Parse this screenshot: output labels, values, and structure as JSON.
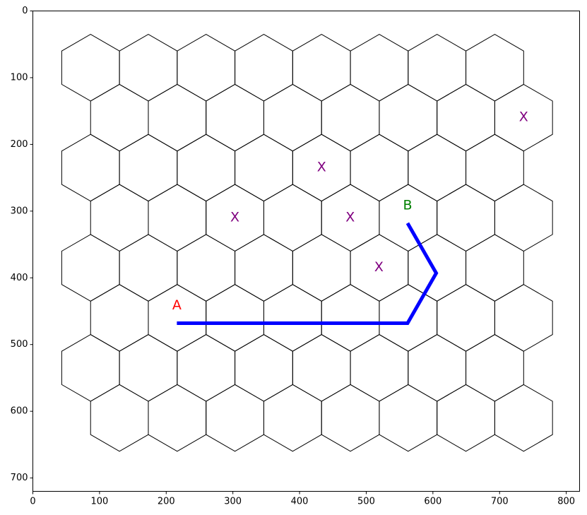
{
  "chart_data": {
    "type": "scatter",
    "title": "",
    "xlabel": "",
    "ylabel": "",
    "xlim": [
      0,
      820
    ],
    "ylim": [
      720,
      0
    ],
    "y_inverted": true,
    "grid": false,
    "x_ticks": [
      {
        "value": 0,
        "label": "0"
      },
      {
        "value": 100,
        "label": "100"
      },
      {
        "value": 200,
        "label": "200"
      },
      {
        "value": 300,
        "label": "300"
      },
      {
        "value": 400,
        "label": "400"
      },
      {
        "value": 500,
        "label": "500"
      },
      {
        "value": 600,
        "label": "600"
      },
      {
        "value": 700,
        "label": "700"
      },
      {
        "value": 800,
        "label": "800"
      }
    ],
    "y_ticks": [
      {
        "value": 0,
        "label": "0"
      },
      {
        "value": 100,
        "label": "100"
      },
      {
        "value": 200,
        "label": "200"
      },
      {
        "value": 300,
        "label": "300"
      },
      {
        "value": 400,
        "label": "400"
      },
      {
        "value": 500,
        "label": "500"
      },
      {
        "value": 600,
        "label": "600"
      },
      {
        "value": 700,
        "label": "700"
      }
    ],
    "hex_grid": {
      "rows": 8,
      "cols": 8,
      "hex_radius": 50,
      "first_center": [
        86.6,
        85
      ],
      "col_spacing": 86.6,
      "row_spacing": 75,
      "odd_row_x_offset": 43.3,
      "edge_color": "#000000"
    },
    "path": {
      "color": "#0000ff",
      "points": [
        [
          216,
          468
        ],
        [
          562,
          468
        ],
        [
          605,
          393
        ],
        [
          562,
          318
        ]
      ]
    },
    "labels": [
      {
        "text": "A",
        "x": 216,
        "y": 441,
        "color": "#ff0000"
      },
      {
        "text": "B",
        "x": 562,
        "y": 291,
        "color": "#008000"
      },
      {
        "text": "X",
        "x": 303,
        "y": 309,
        "color": "#800080"
      },
      {
        "text": "X",
        "x": 433,
        "y": 234,
        "color": "#800080"
      },
      {
        "text": "X",
        "x": 476,
        "y": 309,
        "color": "#800080"
      },
      {
        "text": "X",
        "x": 519,
        "y": 384,
        "color": "#800080"
      },
      {
        "text": "X",
        "x": 736,
        "y": 159,
        "color": "#800080"
      }
    ]
  }
}
